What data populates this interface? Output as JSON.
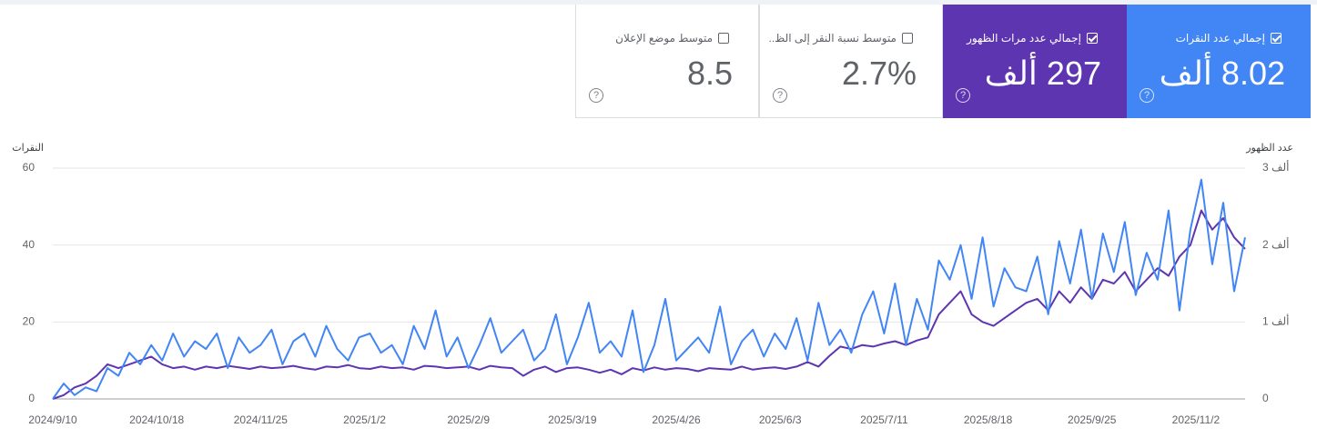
{
  "chart_data": {
    "type": "line",
    "y_title": "النقرات",
    "y2_title": "عدد الظهور",
    "x": [
      "2024/9/10",
      "2024/9/14",
      "2024/9/18",
      "2024/9/22",
      "2024/9/26",
      "2024/9/30",
      "2024/10/4",
      "2024/10/8",
      "2024/10/12",
      "2024/10/16",
      "2024/10/20",
      "2024/10/24",
      "2024/10/28",
      "2024/11/1",
      "2024/11/5",
      "2024/11/9",
      "2024/11/13",
      "2024/11/17",
      "2024/11/21",
      "2024/11/25",
      "2024/11/29",
      "2024/12/3",
      "2024/12/7",
      "2024/12/11",
      "2024/12/15",
      "2024/12/19",
      "2024/12/23",
      "2024/12/27",
      "2024/12/31",
      "2025/1/4",
      "2025/1/8",
      "2025/1/12",
      "2025/1/16",
      "2025/1/20",
      "2025/1/24",
      "2025/1/28",
      "2025/2/1",
      "2025/2/5",
      "2025/2/9",
      "2025/2/13",
      "2025/2/17",
      "2025/2/21",
      "2025/2/25",
      "2025/3/1",
      "2025/3/5",
      "2025/3/9",
      "2025/3/13",
      "2025/3/17",
      "2025/3/21",
      "2025/3/25",
      "2025/3/29",
      "2025/4/2",
      "2025/4/6",
      "2025/4/10",
      "2025/4/14",
      "2025/4/18",
      "2025/4/22",
      "2025/4/26",
      "2025/4/30",
      "2025/5/4",
      "2025/5/8",
      "2025/5/12",
      "2025/5/16",
      "2025/5/20",
      "2025/5/24",
      "2025/5/28",
      "2025/6/1",
      "2025/6/5",
      "2025/6/9",
      "2025/6/13",
      "2025/6/17",
      "2025/6/21",
      "2025/6/25",
      "2025/6/29",
      "2025/7/3",
      "2025/7/7",
      "2025/7/11",
      "2025/7/15",
      "2025/7/19",
      "2025/7/23",
      "2025/7/27",
      "2025/7/31",
      "2025/8/4",
      "2025/8/8",
      "2025/8/12",
      "2025/8/16",
      "2025/8/20",
      "2025/8/24",
      "2025/8/28",
      "2025/9/1",
      "2025/9/5",
      "2025/9/9",
      "2025/9/13",
      "2025/9/17",
      "2025/9/21",
      "2025/9/25",
      "2025/9/29",
      "2025/10/3",
      "2025/10/7",
      "2025/10/11",
      "2025/10/15",
      "2025/10/19",
      "2025/10/23",
      "2025/10/27",
      "2025/10/31",
      "2025/11/4",
      "2025/11/8",
      "2025/11/12",
      "2025/11/16",
      "2025/11/20"
    ],
    "series": [
      {
        "name": "إجمالي عدد النقرات",
        "total": "8.02 ألف",
        "color": "#4285f4",
        "values": [
          0,
          4,
          1,
          3,
          2,
          8,
          6,
          12,
          9,
          14,
          10,
          17,
          11,
          15,
          13,
          17,
          8,
          16,
          12,
          14,
          18,
          9,
          15,
          17,
          11,
          19,
          13,
          10,
          16,
          17,
          12,
          14,
          9,
          19,
          13,
          23,
          11,
          16,
          8,
          14,
          21,
          12,
          15,
          18,
          10,
          13,
          22,
          9,
          16,
          25,
          12,
          15,
          11,
          23,
          7,
          14,
          26,
          10,
          13,
          16,
          12,
          24,
          9,
          15,
          18,
          11,
          17,
          13,
          21,
          10,
          25,
          14,
          18,
          12,
          22,
          28,
          17,
          30,
          14,
          26,
          18,
          36,
          31,
          40,
          26,
          42,
          24,
          34,
          29,
          28,
          37,
          22,
          41,
          30,
          44,
          26,
          43,
          33,
          46,
          27,
          38,
          31,
          49,
          23,
          44,
          57,
          35,
          51,
          28,
          42
        ]
      },
      {
        "name": "إجمالي عدد مرات الظهور",
        "total": "297 ألف",
        "color": "#5e35b1",
        "axis": "y2",
        "values": [
          0,
          50,
          150,
          200,
          300,
          450,
          400,
          450,
          500,
          550,
          450,
          400,
          420,
          380,
          420,
          400,
          430,
          410,
          390,
          420,
          400,
          410,
          430,
          400,
          380,
          420,
          410,
          440,
          400,
          390,
          420,
          400,
          410,
          380,
          430,
          420,
          400,
          410,
          420,
          380,
          430,
          410,
          400,
          300,
          380,
          420,
          350,
          400,
          410,
          380,
          340,
          380,
          320,
          400,
          370,
          410,
          380,
          400,
          390,
          360,
          400,
          390,
          380,
          420,
          380,
          400,
          410,
          390,
          420,
          480,
          420,
          560,
          680,
          650,
          700,
          680,
          720,
          750,
          700,
          760,
          800,
          1100,
          1250,
          1400,
          1100,
          1000,
          950,
          1050,
          1150,
          1250,
          1300,
          1150,
          1400,
          1250,
          1450,
          1300,
          1550,
          1500,
          1650,
          1400,
          1550,
          1700,
          1600,
          1850,
          2000,
          2450,
          2200,
          2350,
          2100,
          1950
        ]
      }
    ],
    "xlim": [
      "2024/9/10",
      "2025/11/20"
    ],
    "xticks": [
      "2024/9/10",
      "2024/10/18",
      "2024/11/25",
      "2025/1/2",
      "2025/2/9",
      "2025/3/19",
      "2025/4/26",
      "2025/6/3",
      "2025/7/11",
      "2025/8/18",
      "2025/9/25",
      "2025/11/2"
    ],
    "ylim": [
      0,
      60
    ],
    "yticks": [
      0,
      20,
      40,
      60
    ],
    "y2lim": [
      0,
      3000
    ],
    "y2ticks": [
      0,
      {
        "value": 1000,
        "label": "1 ألف"
      },
      {
        "value": 2000,
        "label": "2 ألف"
      },
      {
        "value": 3000,
        "label": "3 ألف"
      }
    ],
    "grid": true
  },
  "metrics": [
    {
      "name": "متوسط نسبة النقر إلى الظ..",
      "total": "2.7%"
    },
    {
      "name": "متوسط موضع الإعلان",
      "total": "8.5"
    }
  ]
}
